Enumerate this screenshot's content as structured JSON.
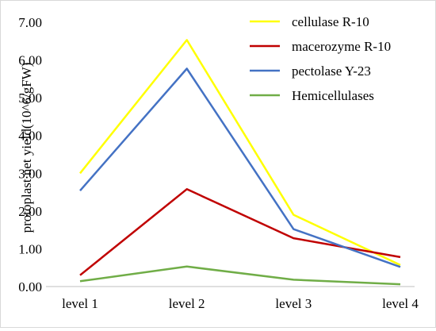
{
  "chart_data": {
    "type": "line",
    "title": "",
    "xlabel": "",
    "ylabel": "protoplast net yield(10^6/gFW)",
    "categories": [
      "level 1",
      "level 2",
      "level 3",
      "level 4"
    ],
    "ylim": [
      0,
      7
    ],
    "yticks": [
      "0.00",
      "1.00",
      "2.00",
      "3.00",
      "4.00",
      "5.00",
      "6.00",
      "7.00"
    ],
    "grid": false,
    "legend_position": "top-right",
    "series": [
      {
        "name": "cellulase R-10",
        "color": "#ffff00",
        "values": [
          3.0,
          6.53,
          1.9,
          0.57
        ]
      },
      {
        "name": "macerozyme R-10",
        "color": "#c00000",
        "values": [
          0.3,
          2.58,
          1.28,
          0.78
        ]
      },
      {
        "name": "pectolase Y-23",
        "color": "#4472c4",
        "values": [
          2.54,
          5.77,
          1.52,
          0.52
        ]
      },
      {
        "name": "Hemicellulases",
        "color": "#70ad47",
        "values": [
          0.14,
          0.53,
          0.18,
          0.06
        ]
      }
    ]
  }
}
